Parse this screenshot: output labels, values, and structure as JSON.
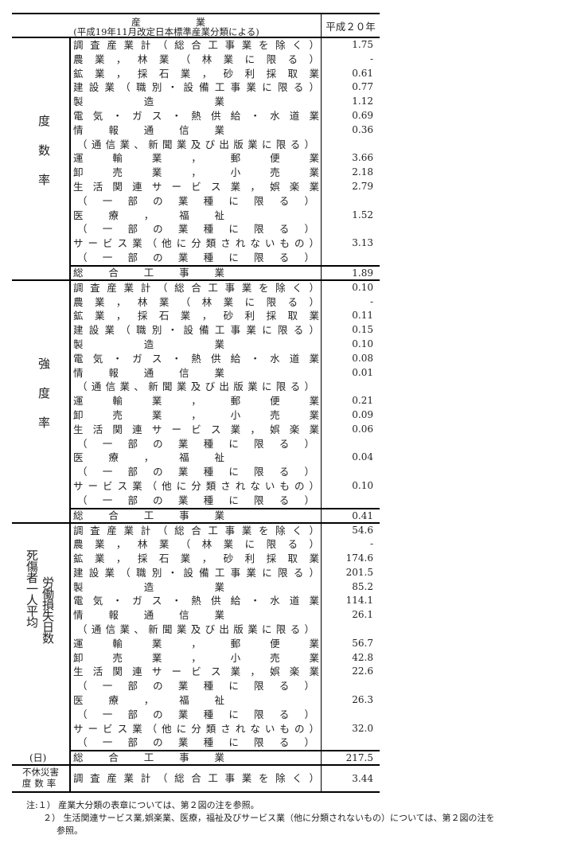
{
  "header": {
    "industry_title": "産業",
    "industry_subtitle": "(平成19年11月改定日本標準産業分類による)",
    "year": "平成２０年"
  },
  "sections": [
    {
      "label": "度数率",
      "rows": [
        {
          "name": "調査産業計（総合工事業を除く）",
          "value": "1.75"
        },
        {
          "name": "農業，林業（林業に限る）",
          "value": "-"
        },
        {
          "name": "鉱業，採石業，砂利採取業",
          "value": "0.61"
        },
        {
          "name": "建設業（職別・設備工事業に限る）",
          "value": "0.77"
        },
        {
          "name": "製造業",
          "value": "1.12"
        },
        {
          "name": "電気・ガス・熱供給・水道業",
          "value": "0.69"
        },
        {
          "name": "情報通信業",
          "value": "0.36"
        },
        {
          "name": "（通信業、新聞業及び出版業に限る）",
          "value": "",
          "sub": true
        },
        {
          "name": "運輸業，郵便業",
          "value": "3.66"
        },
        {
          "name": "卸売業，小売業",
          "value": "2.18"
        },
        {
          "name": "生活関連サービス業，娯楽業",
          "value": "2.79"
        },
        {
          "name": "（一部の業種に限る）",
          "value": "",
          "sub": true
        },
        {
          "name": "医療，福祉",
          "value": "1.52"
        },
        {
          "name": "（一部の業種に限る）",
          "value": "",
          "sub": true
        },
        {
          "name": "サービス業（他に分類されないもの）",
          "value": "3.13"
        },
        {
          "name": "（一部の業種に限る）",
          "value": "",
          "sub": true
        }
      ],
      "total": {
        "name": "総合工事業",
        "value": "1.89"
      }
    },
    {
      "label": "強度率",
      "rows": [
        {
          "name": "調査産業計（総合工事業を除く）",
          "value": "0.10"
        },
        {
          "name": "農業，林業（林業に限る）",
          "value": "-"
        },
        {
          "name": "鉱業，採石業，砂利採取業",
          "value": "0.11"
        },
        {
          "name": "建設業（職別・設備工事業に限る）",
          "value": "0.15"
        },
        {
          "name": "製造業",
          "value": "0.10"
        },
        {
          "name": "電気・ガス・熱供給・水道業",
          "value": "0.08"
        },
        {
          "name": "情報通信業",
          "value": "0.01"
        },
        {
          "name": "（通信業、新聞業及び出版業に限る）",
          "value": "",
          "sub": true
        },
        {
          "name": "運輸業，郵便業",
          "value": "0.21"
        },
        {
          "name": "卸売業，小売業",
          "value": "0.09"
        },
        {
          "name": "生活関連サービス業，娯楽業",
          "value": "0.06"
        },
        {
          "name": "（一部の業種に限る）",
          "value": "",
          "sub": true
        },
        {
          "name": "医療，福祉",
          "value": "0.04"
        },
        {
          "name": "（一部の業種に限る）",
          "value": "",
          "sub": true
        },
        {
          "name": "サービス業（他に分類されないもの）",
          "value": "0.10"
        },
        {
          "name": "（一部の業種に限る）",
          "value": "",
          "sub": true
        }
      ],
      "total": {
        "name": "総合工事業",
        "value": "0.41"
      }
    },
    {
      "label_col1": "死傷者一人平均",
      "label_col2": "労働損失日数",
      "unit": "(日)",
      "rows": [
        {
          "name": "調査産業計（総合工事業を除く）",
          "value": "54.6"
        },
        {
          "name": "農業，林業（林業に限る）",
          "value": "-"
        },
        {
          "name": "鉱業，採石業，砂利採取業",
          "value": "174.6"
        },
        {
          "name": "建設業（職別・設備工事業に限る）",
          "value": "201.5"
        },
        {
          "name": "製造業",
          "value": "85.2"
        },
        {
          "name": "電気・ガス・熱供給・水道業",
          "value": "114.1"
        },
        {
          "name": "情報通信業",
          "value": "26.1"
        },
        {
          "name": "（通信業、新聞業及び出版業に限る）",
          "value": "",
          "sub": true
        },
        {
          "name": "運輸業，郵便業",
          "value": "56.7"
        },
        {
          "name": "卸売業，小売業",
          "value": "42.8"
        },
        {
          "name": "生活関連サービス業，娯楽業",
          "value": "22.6"
        },
        {
          "name": "（一部の業種に限る）",
          "value": "",
          "sub": true
        },
        {
          "name": "医療，福祉",
          "value": "26.3"
        },
        {
          "name": "（一部の業種に限る）",
          "value": "",
          "sub": true
        },
        {
          "name": "サービス業（他に分類されないもの）",
          "value": "32.0"
        },
        {
          "name": "（一部の業種に限る）",
          "value": "",
          "sub": true
        }
      ],
      "total": {
        "name": "総合工事業",
        "value": "217.5"
      }
    }
  ],
  "absence_free": {
    "label_line1": "不休災害",
    "label_line2": "度数率",
    "name": "調査産業計（総合工事業を除く）",
    "value": "3.44"
  },
  "notes": [
    "注:１） 産業大分類の表章については、第２図の注を参照。",
    "２） 生活関連サービス業,娯楽業、医療，福祉及びサービス業（他に分類されないもの）については、第２図の注を",
    "参照。"
  ]
}
